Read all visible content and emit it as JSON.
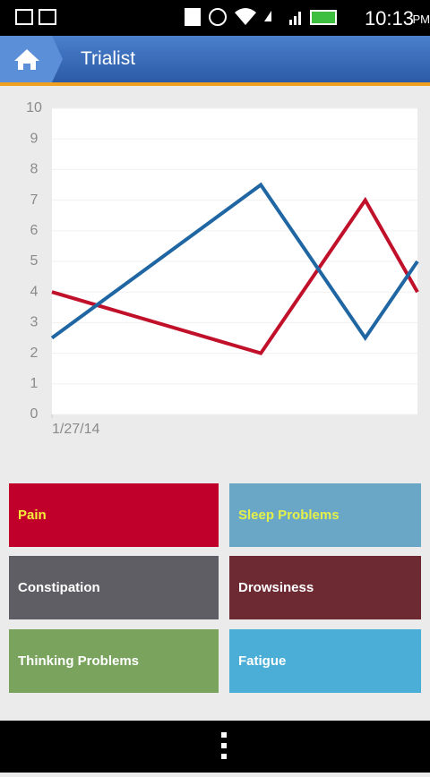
{
  "status_bar": {
    "time": "10:13",
    "period": "PM"
  },
  "action_bar": {
    "title": "Trialist"
  },
  "chart_data": {
    "type": "line",
    "x": [
      0,
      4,
      6,
      7
    ],
    "xlim": [
      0,
      7
    ],
    "xticks": [
      {
        "value": 0,
        "label": "1/27/14"
      }
    ],
    "ylim": [
      0,
      10
    ],
    "yticks": [
      0,
      1,
      2,
      3,
      4,
      5,
      6,
      7,
      8,
      9,
      10
    ],
    "grid": true,
    "series": [
      {
        "color": "#c0102a",
        "values": [
          4,
          2,
          7,
          4
        ]
      },
      {
        "color": "#1f66a3",
        "values": [
          2.5,
          7.5,
          2.5,
          5
        ]
      }
    ]
  },
  "buttons": [
    {
      "label": "Pain",
      "color": "#c0002a",
      "text_color": "#f5f03a"
    },
    {
      "label": "Sleep Problems",
      "color": "#6aa7c6",
      "text_color": "#e4f04a"
    },
    {
      "label": "Constipation",
      "color": "#5e5e64",
      "text_color": "#ffffff"
    },
    {
      "label": "Drowsiness",
      "color": "#6d2a33",
      "text_color": "#ffffff"
    },
    {
      "label": "Thinking Problems",
      "color": "#7aa35e",
      "text_color": "#ffffff"
    },
    {
      "label": "Fatigue",
      "color": "#4aaed6",
      "text_color": "#ffffff"
    }
  ]
}
